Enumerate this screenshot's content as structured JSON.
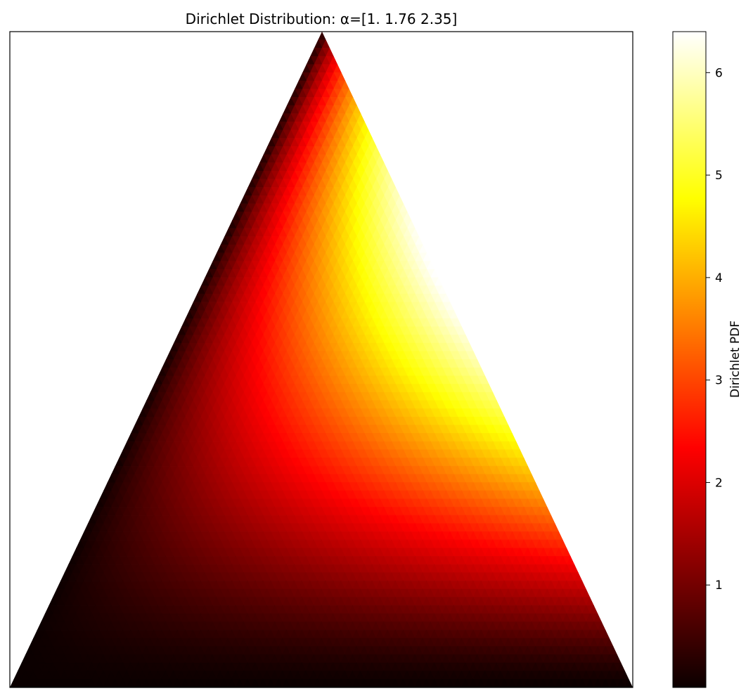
{
  "chart_data": {
    "type": "heatmap",
    "subtype": "ternary-simplex-density",
    "title": "Dirichlet Distribution: α=[1.   1.76 2.35]",
    "alpha": [
      1.0,
      1.76,
      2.35
    ],
    "colormap": "hot",
    "colorbar": {
      "label": "Dirichlet PDF",
      "ticks": [
        1,
        2,
        3,
        4,
        5,
        6
      ],
      "tick_labels": [
        "1",
        "2",
        "3",
        "4",
        "5",
        "6"
      ],
      "range": [
        0.0,
        6.4
      ]
    },
    "axes_visible": false,
    "grid": false
  }
}
